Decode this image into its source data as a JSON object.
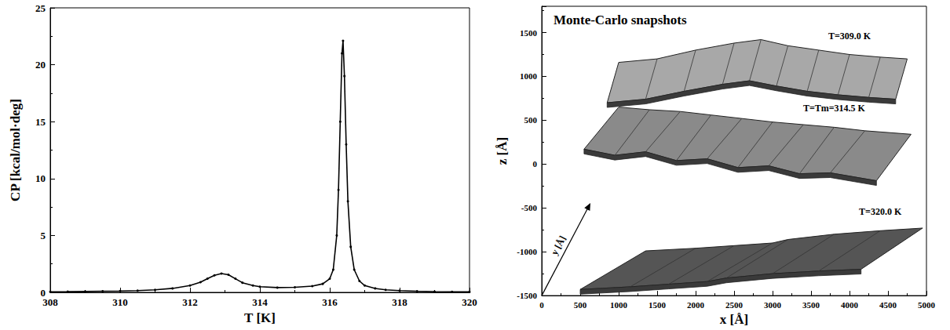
{
  "chart_data": [
    {
      "type": "line",
      "xlabel": "T [K]",
      "ylabel": "CP [kcal/mol·deg]",
      "xlim": [
        308,
        320
      ],
      "xticks": [
        308,
        310,
        312,
        314,
        316,
        318,
        320
      ],
      "ylim": [
        0,
        25
      ],
      "yticks": [
        0,
        5,
        10,
        15,
        20,
        25
      ],
      "color": "#000000",
      "marker": "circle",
      "line_style": "solid",
      "baseline": {
        "value": 0,
        "line_style": "dotted"
      },
      "x": [
        308,
        308.5,
        309,
        309.5,
        310,
        310.5,
        311,
        311.5,
        312,
        312.3,
        312.5,
        312.7,
        312.9,
        313.1,
        313.3,
        313.5,
        313.8,
        314,
        314.5,
        315,
        315.5,
        315.8,
        316,
        316.1,
        316.2,
        316.25,
        316.3,
        316.35,
        316.38,
        316.42,
        316.47,
        316.52,
        316.6,
        316.7,
        316.85,
        317,
        317.3,
        317.6,
        318,
        318.5,
        319,
        319.5,
        320
      ],
      "values": [
        0.05,
        0.06,
        0.08,
        0.1,
        0.12,
        0.16,
        0.22,
        0.35,
        0.6,
        0.9,
        1.2,
        1.5,
        1.65,
        1.55,
        1.2,
        0.85,
        0.6,
        0.5,
        0.42,
        0.45,
        0.55,
        0.75,
        1.2,
        2.0,
        5.0,
        9.0,
        15.0,
        21.0,
        22.1,
        19.0,
        13.0,
        8.0,
        4.0,
        2.0,
        1.0,
        0.6,
        0.35,
        0.22,
        0.15,
        0.1,
        0.07,
        0.05,
        0.04
      ]
    },
    {
      "type": "snapshots",
      "title": "Monte-Carlo snapshots",
      "xlabel": "x [Å]",
      "ylabel": "z [Å]",
      "depth_label": "y [Å]",
      "xlim": [
        0,
        5000
      ],
      "xticks": [
        0,
        500,
        1000,
        1500,
        2000,
        2500,
        3000,
        3500,
        4000,
        4500,
        5000
      ],
      "ylim": [
        -1500,
        1800
      ],
      "yticks": [
        -1500,
        -1000,
        -500,
        0,
        500,
        1000,
        1500
      ],
      "snapshots": [
        {
          "name": "T=309.0 K",
          "color": "#a8a8a8",
          "back": [
            [
              1000,
              1160
            ],
            [
              1500,
              1200
            ],
            [
              2000,
              1300
            ],
            [
              2500,
              1380
            ],
            [
              2850,
              1420
            ],
            [
              3200,
              1350
            ],
            [
              3600,
              1300
            ],
            [
              4000,
              1250
            ],
            [
              4400,
              1220
            ],
            [
              4750,
              1200
            ]
          ],
          "front": [
            [
              850,
              700
            ],
            [
              1350,
              740
            ],
            [
              1850,
              830
            ],
            [
              2350,
              910
            ],
            [
              2700,
              950
            ],
            [
              3050,
              890
            ],
            [
              3450,
              830
            ],
            [
              3850,
              790
            ],
            [
              4250,
              760
            ],
            [
              4600,
              740
            ]
          ]
        },
        {
          "name": "T=Tm=314.5 K",
          "color": "#8a8a8a",
          "back": [
            [
              1000,
              650
            ],
            [
              1400,
              620
            ],
            [
              1800,
              600
            ],
            [
              2200,
              560
            ],
            [
              2600,
              520
            ],
            [
              3000,
              480
            ],
            [
              3400,
              450
            ],
            [
              3800,
              420
            ],
            [
              4200,
              380
            ],
            [
              4800,
              340
            ]
          ],
          "front": [
            [
              550,
              170
            ],
            [
              950,
              100
            ],
            [
              1350,
              140
            ],
            [
              1750,
              40
            ],
            [
              2150,
              60
            ],
            [
              2550,
              -40
            ],
            [
              2950,
              -20
            ],
            [
              3350,
              -110
            ],
            [
              3750,
              -100
            ],
            [
              4350,
              -190
            ]
          ]
        },
        {
          "name": "T=320.0 K",
          "color": "#555555",
          "back": [
            [
              1350,
              -990
            ],
            [
              2000,
              -960
            ],
            [
              2500,
              -930
            ],
            [
              3000,
              -900
            ],
            [
              3200,
              -860
            ],
            [
              3800,
              -800
            ],
            [
              4400,
              -760
            ],
            [
              4950,
              -730
            ]
          ],
          "front": [
            [
              500,
              -1430
            ],
            [
              1150,
              -1400
            ],
            [
              1650,
              -1370
            ],
            [
              2150,
              -1340
            ],
            [
              2400,
              -1300
            ],
            [
              3000,
              -1250
            ],
            [
              3600,
              -1220
            ],
            [
              4150,
              -1200
            ]
          ]
        }
      ]
    }
  ]
}
